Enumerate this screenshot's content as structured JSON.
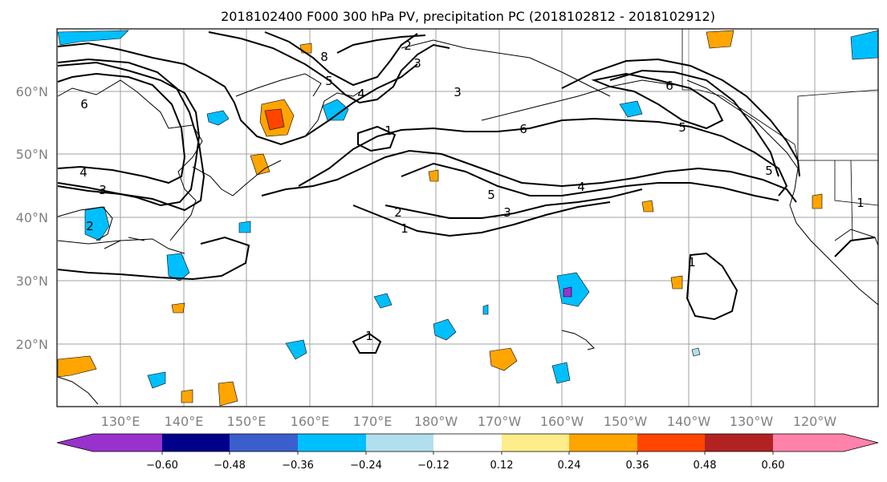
{
  "title": "2018102400 F000 300 hPa PV, precipitation PC (2018102812 - 2018102912)",
  "map": {
    "lat_labels": [
      "60°N",
      "50°N",
      "40°N",
      "30°N",
      "20°N"
    ],
    "lon_labels": [
      "130°E",
      "140°E",
      "150°E",
      "160°E",
      "170°E",
      "180°W",
      "170°W",
      "160°W",
      "150°W",
      "140°W",
      "130°W",
      "120°W"
    ],
    "contour_labels": [
      "6",
      "4",
      "3",
      "2",
      "8",
      "5",
      "4",
      "2",
      "3",
      "3",
      "1",
      "1",
      "6",
      "4",
      "5",
      "3",
      "2",
      "1",
      "6",
      "5",
      "5",
      "1",
      "1"
    ]
  },
  "colorbar": {
    "tick_labels": [
      "−0.60",
      "−0.48",
      "−0.36",
      "−0.24",
      "−0.12",
      "0.12",
      "0.24",
      "0.36",
      "0.48",
      "0.60"
    ],
    "colors": [
      "#9932cc",
      "#00008b",
      "#3a5fcd",
      "#00bfff",
      "#b2dfee",
      "#ffffff",
      "#ffec8b",
      "#ffa500",
      "#ff4500",
      "#b22222",
      "#ff82ab"
    ]
  }
}
